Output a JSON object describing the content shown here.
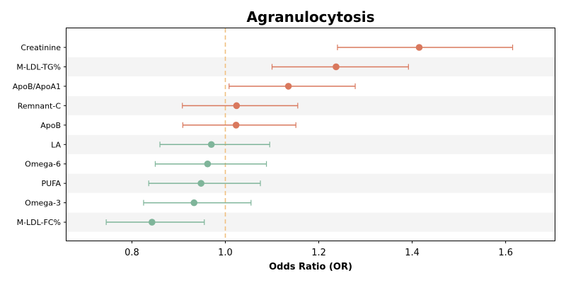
{
  "chart_data": {
    "type": "forest",
    "title": "Agranulocytosis",
    "xlabel": "Odds Ratio (OR)",
    "ylabel": "",
    "xlim": [
      0.66,
      1.705
    ],
    "xticks": [
      "0.8",
      "1.0",
      "1.2",
      "1.4",
      "1.6"
    ],
    "reference_line": 1.0,
    "colors": {
      "risk": "#d9785d",
      "protective": "#7fb59a",
      "reference": "#f0c080",
      "band": "#f4f4f4"
    },
    "rows": [
      {
        "label": "Creatinine",
        "or": 1.415,
        "lower": 1.24,
        "upper": 1.615,
        "group": "risk"
      },
      {
        "label": "M-LDL-TG%",
        "or": 1.237,
        "lower": 1.1,
        "upper": 1.392,
        "group": "risk"
      },
      {
        "label": "ApoB/ApoA1",
        "or": 1.135,
        "lower": 1.008,
        "upper": 1.278,
        "group": "risk"
      },
      {
        "label": "Remnant-C",
        "or": 1.024,
        "lower": 0.908,
        "upper": 1.155,
        "group": "risk"
      },
      {
        "label": "ApoB",
        "or": 1.023,
        "lower": 0.909,
        "upper": 1.151,
        "group": "risk"
      },
      {
        "label": "LA",
        "or": 0.97,
        "lower": 0.86,
        "upper": 1.095,
        "group": "protective"
      },
      {
        "label": "Omega-6",
        "or": 0.962,
        "lower": 0.85,
        "upper": 1.088,
        "group": "protective"
      },
      {
        "label": "PUFA",
        "or": 0.948,
        "lower": 0.836,
        "upper": 1.075,
        "group": "protective"
      },
      {
        "label": "Omega-3",
        "or": 0.933,
        "lower": 0.825,
        "upper": 1.055,
        "group": "protective"
      },
      {
        "label": "M-LDL-FC%",
        "or": 0.843,
        "lower": 0.745,
        "upper": 0.955,
        "group": "protective"
      }
    ]
  }
}
